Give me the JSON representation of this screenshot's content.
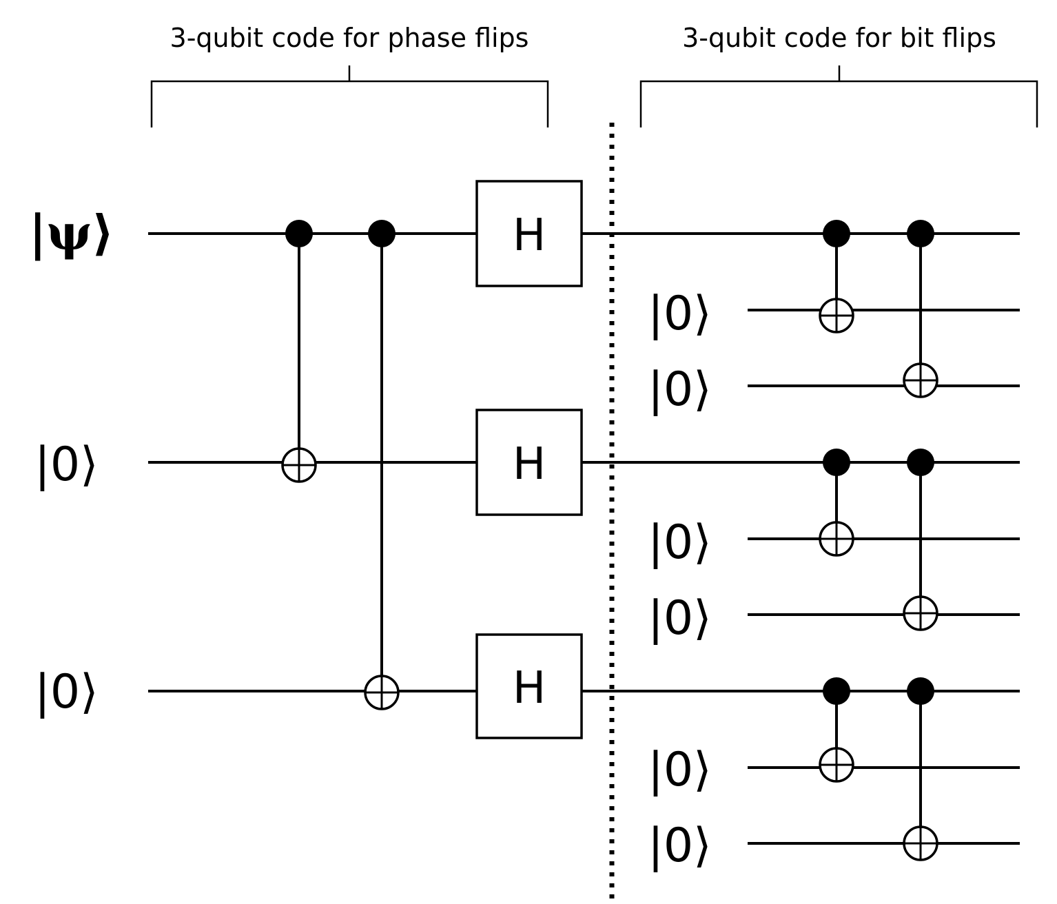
{
  "sections": {
    "phase_flip_label": "3-qubit code for phase flips",
    "bit_flip_label": "3-qubit code for bit flips"
  },
  "inputs": {
    "psi": "|ψ⟩",
    "zero": "|0⟩"
  },
  "gates": {
    "hadamard": "H"
  }
}
